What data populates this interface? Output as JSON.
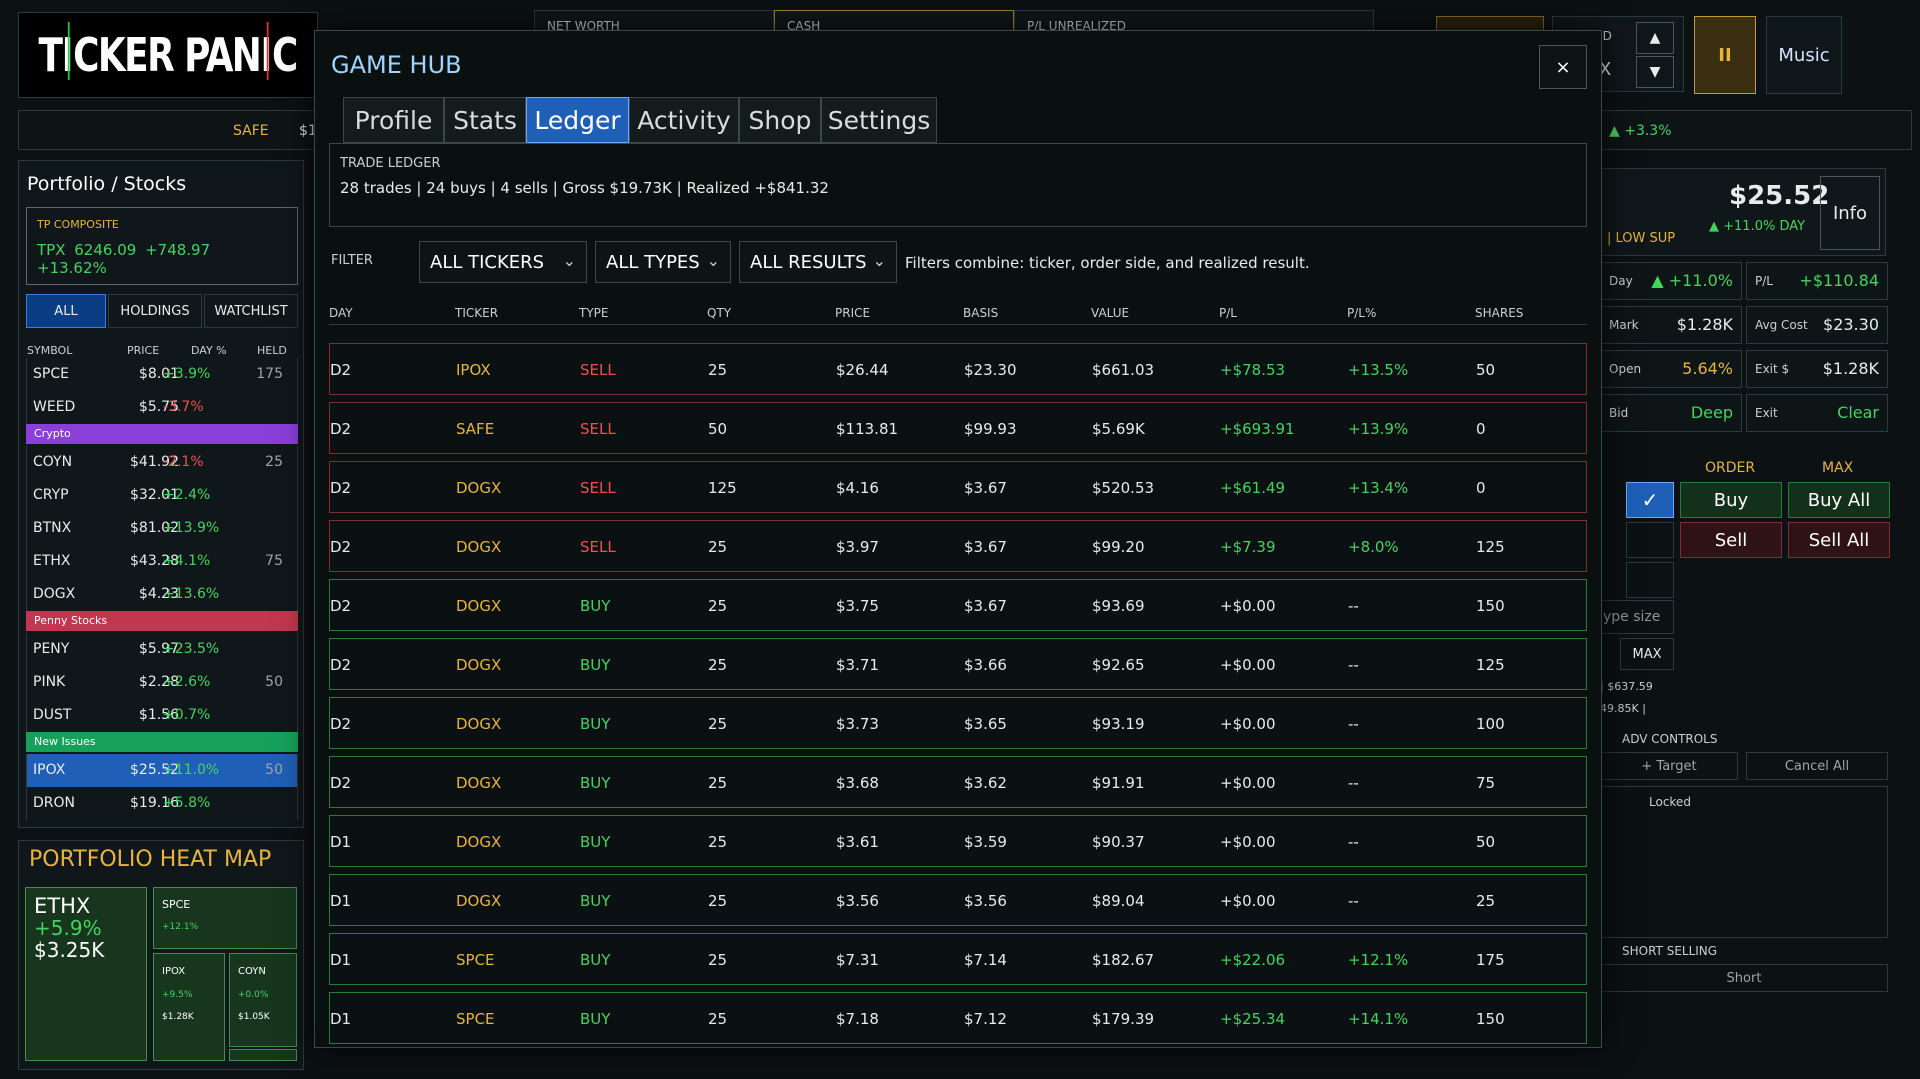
{
  "app": {
    "logo": "TICKER PANIC"
  },
  "topbar": {
    "net_worth_label": "NET WORTH",
    "cash_label": "CASH",
    "pl_unrealized_label": "P/L UNREALIZED",
    "speed_label": "ED",
    "speed_value": "X",
    "pause_glyph": "II",
    "music_label": "Music",
    "up_glyph": "▲",
    "down_glyph": "▼"
  },
  "ticker_strip": {
    "safe_label": "SAFE",
    "safe_value": "$1",
    "change": "▲ +3.3%"
  },
  "portfolio": {
    "title": "Portfolio / Stocks",
    "composite_label": "TP COMPOSITE",
    "composite_symbol": "TPX",
    "composite_value": "6246.09",
    "composite_change": "+748.97",
    "composite_pct": "+13.62%",
    "tabs": [
      "ALL",
      "HOLDINGS",
      "WATCHLIST"
    ],
    "columns": [
      "SYMBOL",
      "PRICE",
      "DAY %",
      "HELD"
    ],
    "rows": [
      {
        "sym": "SPCE",
        "price": "$8.01",
        "day": "+3.9%",
        "held": "175",
        "dir": "up"
      },
      {
        "sym": "WEED",
        "price": "$5.75",
        "day": "-3.7%",
        "held": "",
        "dir": "down"
      },
      {
        "group": "Crypto",
        "color": "#8a3fd8"
      },
      {
        "sym": "COYN",
        "price": "$41.92",
        "day": "-2.1%",
        "held": "25",
        "dir": "down"
      },
      {
        "sym": "CRYP",
        "price": "$32.01",
        "day": "+2.4%",
        "held": "",
        "dir": "up"
      },
      {
        "sym": "BTNX",
        "price": "$81.02",
        "day": "+13.9%",
        "held": "",
        "dir": "up"
      },
      {
        "sym": "ETHX",
        "price": "$43.28",
        "day": "+4.1%",
        "held": "75",
        "dir": "up"
      },
      {
        "sym": "DOGX",
        "price": "$4.23",
        "day": "+13.6%",
        "held": "",
        "dir": "up"
      },
      {
        "group": "Penny Stocks",
        "color": "#c2374f"
      },
      {
        "sym": "PENY",
        "price": "$5.97",
        "day": "+23.5%",
        "held": "",
        "dir": "up"
      },
      {
        "sym": "PINK",
        "price": "$2.28",
        "day": "+2.6%",
        "held": "50",
        "dir": "up"
      },
      {
        "sym": "DUST",
        "price": "$1.56",
        "day": "+0.7%",
        "held": "",
        "dir": "up"
      },
      {
        "group": "New Issues",
        "color": "#16a05a"
      },
      {
        "sym": "IPOX",
        "price": "$25.52",
        "day": "+11.0%",
        "held": "50",
        "dir": "up",
        "selected": true
      },
      {
        "sym": "DRON",
        "price": "$19.16",
        "day": "+5.8%",
        "held": "",
        "dir": "up"
      }
    ]
  },
  "heatmap": {
    "title": "PORTFOLIO HEAT MAP",
    "cells": [
      {
        "sym": "ETHX",
        "pct": "+5.9%",
        "val": "$3.25K"
      },
      {
        "sym": "SPCE",
        "pct": "+12.1%",
        "val": ""
      },
      {
        "sym": "IPOX",
        "pct": "+9.5%",
        "val": "$1.28K"
      },
      {
        "sym": "COYN",
        "pct": "+0.0%",
        "val": "$1.05K"
      }
    ]
  },
  "right": {
    "price": "$25.52",
    "info_label": "Info",
    "tag": "| LOW SUP",
    "day_change": "▲ +11.0% DAY",
    "stats": [
      {
        "k": "Day",
        "v": "▲ +11.0%",
        "c": "green"
      },
      {
        "k": "P/L",
        "v": "+$110.84",
        "c": "green"
      },
      {
        "k": "Mark",
        "v": "$1.28K",
        "c": "white"
      },
      {
        "k": "Avg Cost",
        "v": "$23.30",
        "c": "white"
      },
      {
        "k": "Open",
        "v": "5.64%",
        "c": "gold"
      },
      {
        "k": "Exit $",
        "v": "$1.28K",
        "c": "white"
      },
      {
        "k": "Bid",
        "v": "Deep",
        "c": "green"
      },
      {
        "k": "Exit",
        "v": "Clear",
        "c": "green"
      }
    ],
    "order_label": "ORDER",
    "max_label": "MAX",
    "buy_label": "Buy",
    "buy_all_label": "Buy All",
    "sell_label": "Sell",
    "sell_all_label": "Sell All",
    "size_placeholder": "ype size",
    "max_btn": "MAX",
    "line1": "| $637.59",
    "line2": "49.85K |",
    "adv_label": "ADV CONTROLS",
    "target_label": "+ Target",
    "cancel_all_label": "Cancel All",
    "locked_label": "Locked",
    "short_label": "SHORT SELLING",
    "short_btn": "Short"
  },
  "modal": {
    "title": "GAME HUB",
    "close": "×",
    "tabs": [
      "Profile",
      "Stats",
      "Ledger",
      "Activity",
      "Shop",
      "Settings"
    ],
    "active_tab": "Ledger",
    "ledger_label": "TRADE LEDGER",
    "summary": "28 trades | 24 buys | 4 sells | Gross $19.73K | Realized +$841.32",
    "filter_label": "FILTER",
    "filters": [
      "ALL TICKERS",
      "ALL TYPES",
      "ALL RESULTS"
    ],
    "filter_note": "Filters combine: ticker, order side, and realized result.",
    "columns": [
      "DAY",
      "TICKER",
      "TYPE",
      "QTY",
      "PRICE",
      "BASIS",
      "VALUE",
      "P/L",
      "P/L%",
      "SHARES"
    ],
    "rows": [
      {
        "day": "D2",
        "ticker": "IPOX",
        "type": "SELL",
        "qty": "25",
        "price": "$26.44",
        "basis": "$23.30",
        "value": "$661.03",
        "pl": "+$78.53",
        "plp": "+13.5%",
        "shares": "50"
      },
      {
        "day": "D2",
        "ticker": "SAFE",
        "type": "SELL",
        "qty": "50",
        "price": "$113.81",
        "basis": "$99.93",
        "value": "$5.69K",
        "pl": "+$693.91",
        "plp": "+13.9%",
        "shares": "0"
      },
      {
        "day": "D2",
        "ticker": "DOGX",
        "type": "SELL",
        "qty": "125",
        "price": "$4.16",
        "basis": "$3.67",
        "value": "$520.53",
        "pl": "+$61.49",
        "plp": "+13.4%",
        "shares": "0"
      },
      {
        "day": "D2",
        "ticker": "DOGX",
        "type": "SELL",
        "qty": "25",
        "price": "$3.97",
        "basis": "$3.67",
        "value": "$99.20",
        "pl": "+$7.39",
        "plp": "+8.0%",
        "shares": "125"
      },
      {
        "day": "D2",
        "ticker": "DOGX",
        "type": "BUY",
        "qty": "25",
        "price": "$3.75",
        "basis": "$3.67",
        "value": "$93.69",
        "pl": "+$0.00",
        "plp": "--",
        "shares": "150"
      },
      {
        "day": "D2",
        "ticker": "DOGX",
        "type": "BUY",
        "qty": "25",
        "price": "$3.71",
        "basis": "$3.66",
        "value": "$92.65",
        "pl": "+$0.00",
        "plp": "--",
        "shares": "125"
      },
      {
        "day": "D2",
        "ticker": "DOGX",
        "type": "BUY",
        "qty": "25",
        "price": "$3.73",
        "basis": "$3.65",
        "value": "$93.19",
        "pl": "+$0.00",
        "plp": "--",
        "shares": "100"
      },
      {
        "day": "D2",
        "ticker": "DOGX",
        "type": "BUY",
        "qty": "25",
        "price": "$3.68",
        "basis": "$3.62",
        "value": "$91.91",
        "pl": "+$0.00",
        "plp": "--",
        "shares": "75"
      },
      {
        "day": "D1",
        "ticker": "DOGX",
        "type": "BUY",
        "qty": "25",
        "price": "$3.61",
        "basis": "$3.59",
        "value": "$90.37",
        "pl": "+$0.00",
        "plp": "--",
        "shares": "50"
      },
      {
        "day": "D1",
        "ticker": "DOGX",
        "type": "BUY",
        "qty": "25",
        "price": "$3.56",
        "basis": "$3.56",
        "value": "$89.04",
        "pl": "+$0.00",
        "plp": "--",
        "shares": "25"
      },
      {
        "day": "D1",
        "ticker": "SPCE",
        "type": "BUY",
        "qty": "25",
        "price": "$7.31",
        "basis": "$7.14",
        "value": "$182.67",
        "pl": "+$22.06",
        "plp": "+12.1%",
        "shares": "175"
      },
      {
        "day": "D1",
        "ticker": "SPCE",
        "type": "BUY",
        "qty": "25",
        "price": "$7.18",
        "basis": "$7.12",
        "value": "$179.39",
        "pl": "+$25.34",
        "plp": "+14.1%",
        "shares": "150"
      }
    ]
  }
}
